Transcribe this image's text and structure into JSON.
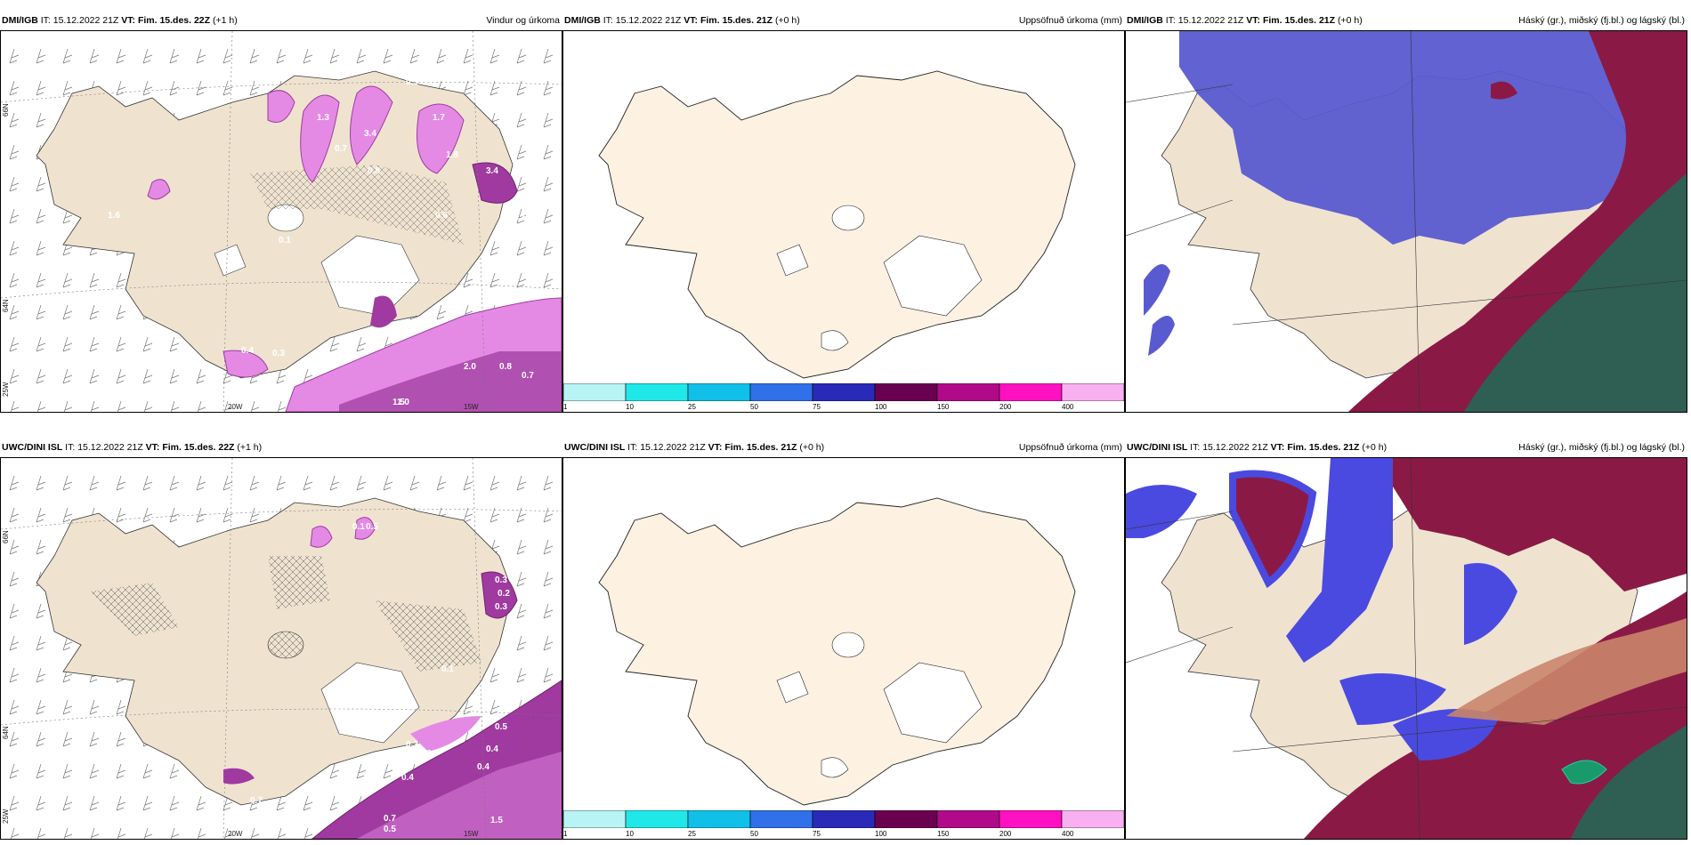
{
  "panels": [
    {
      "id": "p1",
      "model": "DMI/IGB",
      "it_label": "IT:",
      "it": "15.12.2022 21Z",
      "vt_label": "VT:",
      "vt": "Fim. 15.des. 22Z",
      "lead": "(+1 h)",
      "title": "Vindur og úrkoma",
      "grid_labels": [
        "66N",
        "64N",
        "25W",
        "20W",
        "15W"
      ],
      "values": [
        "1.6",
        "1.3",
        "3.4",
        "0.7",
        "0.5",
        "0.8",
        "1.7",
        "1.8",
        "3.4",
        "1.2",
        "0.6",
        "0.1",
        "2.0",
        "0.8",
        "0.7",
        "0.3",
        "1.5",
        "1.0",
        "0.4"
      ]
    },
    {
      "id": "p2",
      "model": "DMI/IGB",
      "it_label": "IT:",
      "it": "15.12.2022 21Z",
      "vt_label": "VT:",
      "vt": "Fim. 15.des. 21Z",
      "lead": "(+0 h)",
      "title": "Uppsöfnuð úrkoma (mm)",
      "colorbar": [
        "1",
        "10",
        "25",
        "50",
        "75",
        "100",
        "150",
        "200",
        "400"
      ]
    },
    {
      "id": "p3",
      "model": "DMI/IGB",
      "it_label": "IT:",
      "it": "15.12.2022 21Z",
      "vt_label": "VT:",
      "vt": "Fim. 15.des. 21Z",
      "lead": "(+0 h)",
      "title": "Háský (gr.), miðský (fj.bl.) og lágský (bl.)"
    },
    {
      "id": "p4",
      "model": "UWC/DINI ISL",
      "it_label": "IT:",
      "it": "15.12.2022 21Z",
      "vt_label": "VT:",
      "vt": "Fim. 15.des. 22Z",
      "lead": "(+1 h)",
      "title": "",
      "grid_labels": [
        "66N",
        "64N",
        "25W",
        "20W",
        "15W"
      ],
      "values": [
        "0.1",
        "0.5",
        "0.3",
        "0.2",
        "0.3",
        "0.1",
        "0.5",
        "0.4",
        "0.4",
        "0.3",
        "0.3",
        "0.4",
        "0.7",
        "0.7",
        "0.5",
        "1.5"
      ]
    },
    {
      "id": "p5",
      "model": "UWC/DINI ISL",
      "it_label": "IT:",
      "it": "15.12.2022 21Z",
      "vt_label": "VT:",
      "vt": "Fim. 15.des. 21Z",
      "lead": "(+0 h)",
      "title": "Uppsöfnuð úrkoma (mm)",
      "colorbar": [
        "1",
        "10",
        "25",
        "50",
        "75",
        "100",
        "150",
        "200",
        "400"
      ]
    },
    {
      "id": "p6",
      "model": "UWC/DINI ISL",
      "it_label": "IT:",
      "it": "15.12.2022 21Z",
      "vt_label": "VT:",
      "vt": "Fim. 15.des. 21Z",
      "lead": "(+0 h)",
      "title": "Háský (gr.), miðský (fj.bl.) og lágský (bl.)"
    }
  ],
  "colors": {
    "land": "#efe3d0",
    "land_light": "#fdf1e2",
    "precip_light": "#e48ae4",
    "precip_dark": "#a03aa0",
    "cloud_high": "#2f5e52",
    "cloud_mid": "#8a1a45",
    "cloud_low": "#5a5ad0",
    "colorbar": [
      "#b8f4f4",
      "#20e8e8",
      "#10c0e8",
      "#3070e8",
      "#2a2ab8",
      "#6a0050",
      "#b00a8a",
      "#ff10c0",
      "#f8b0f0"
    ]
  }
}
